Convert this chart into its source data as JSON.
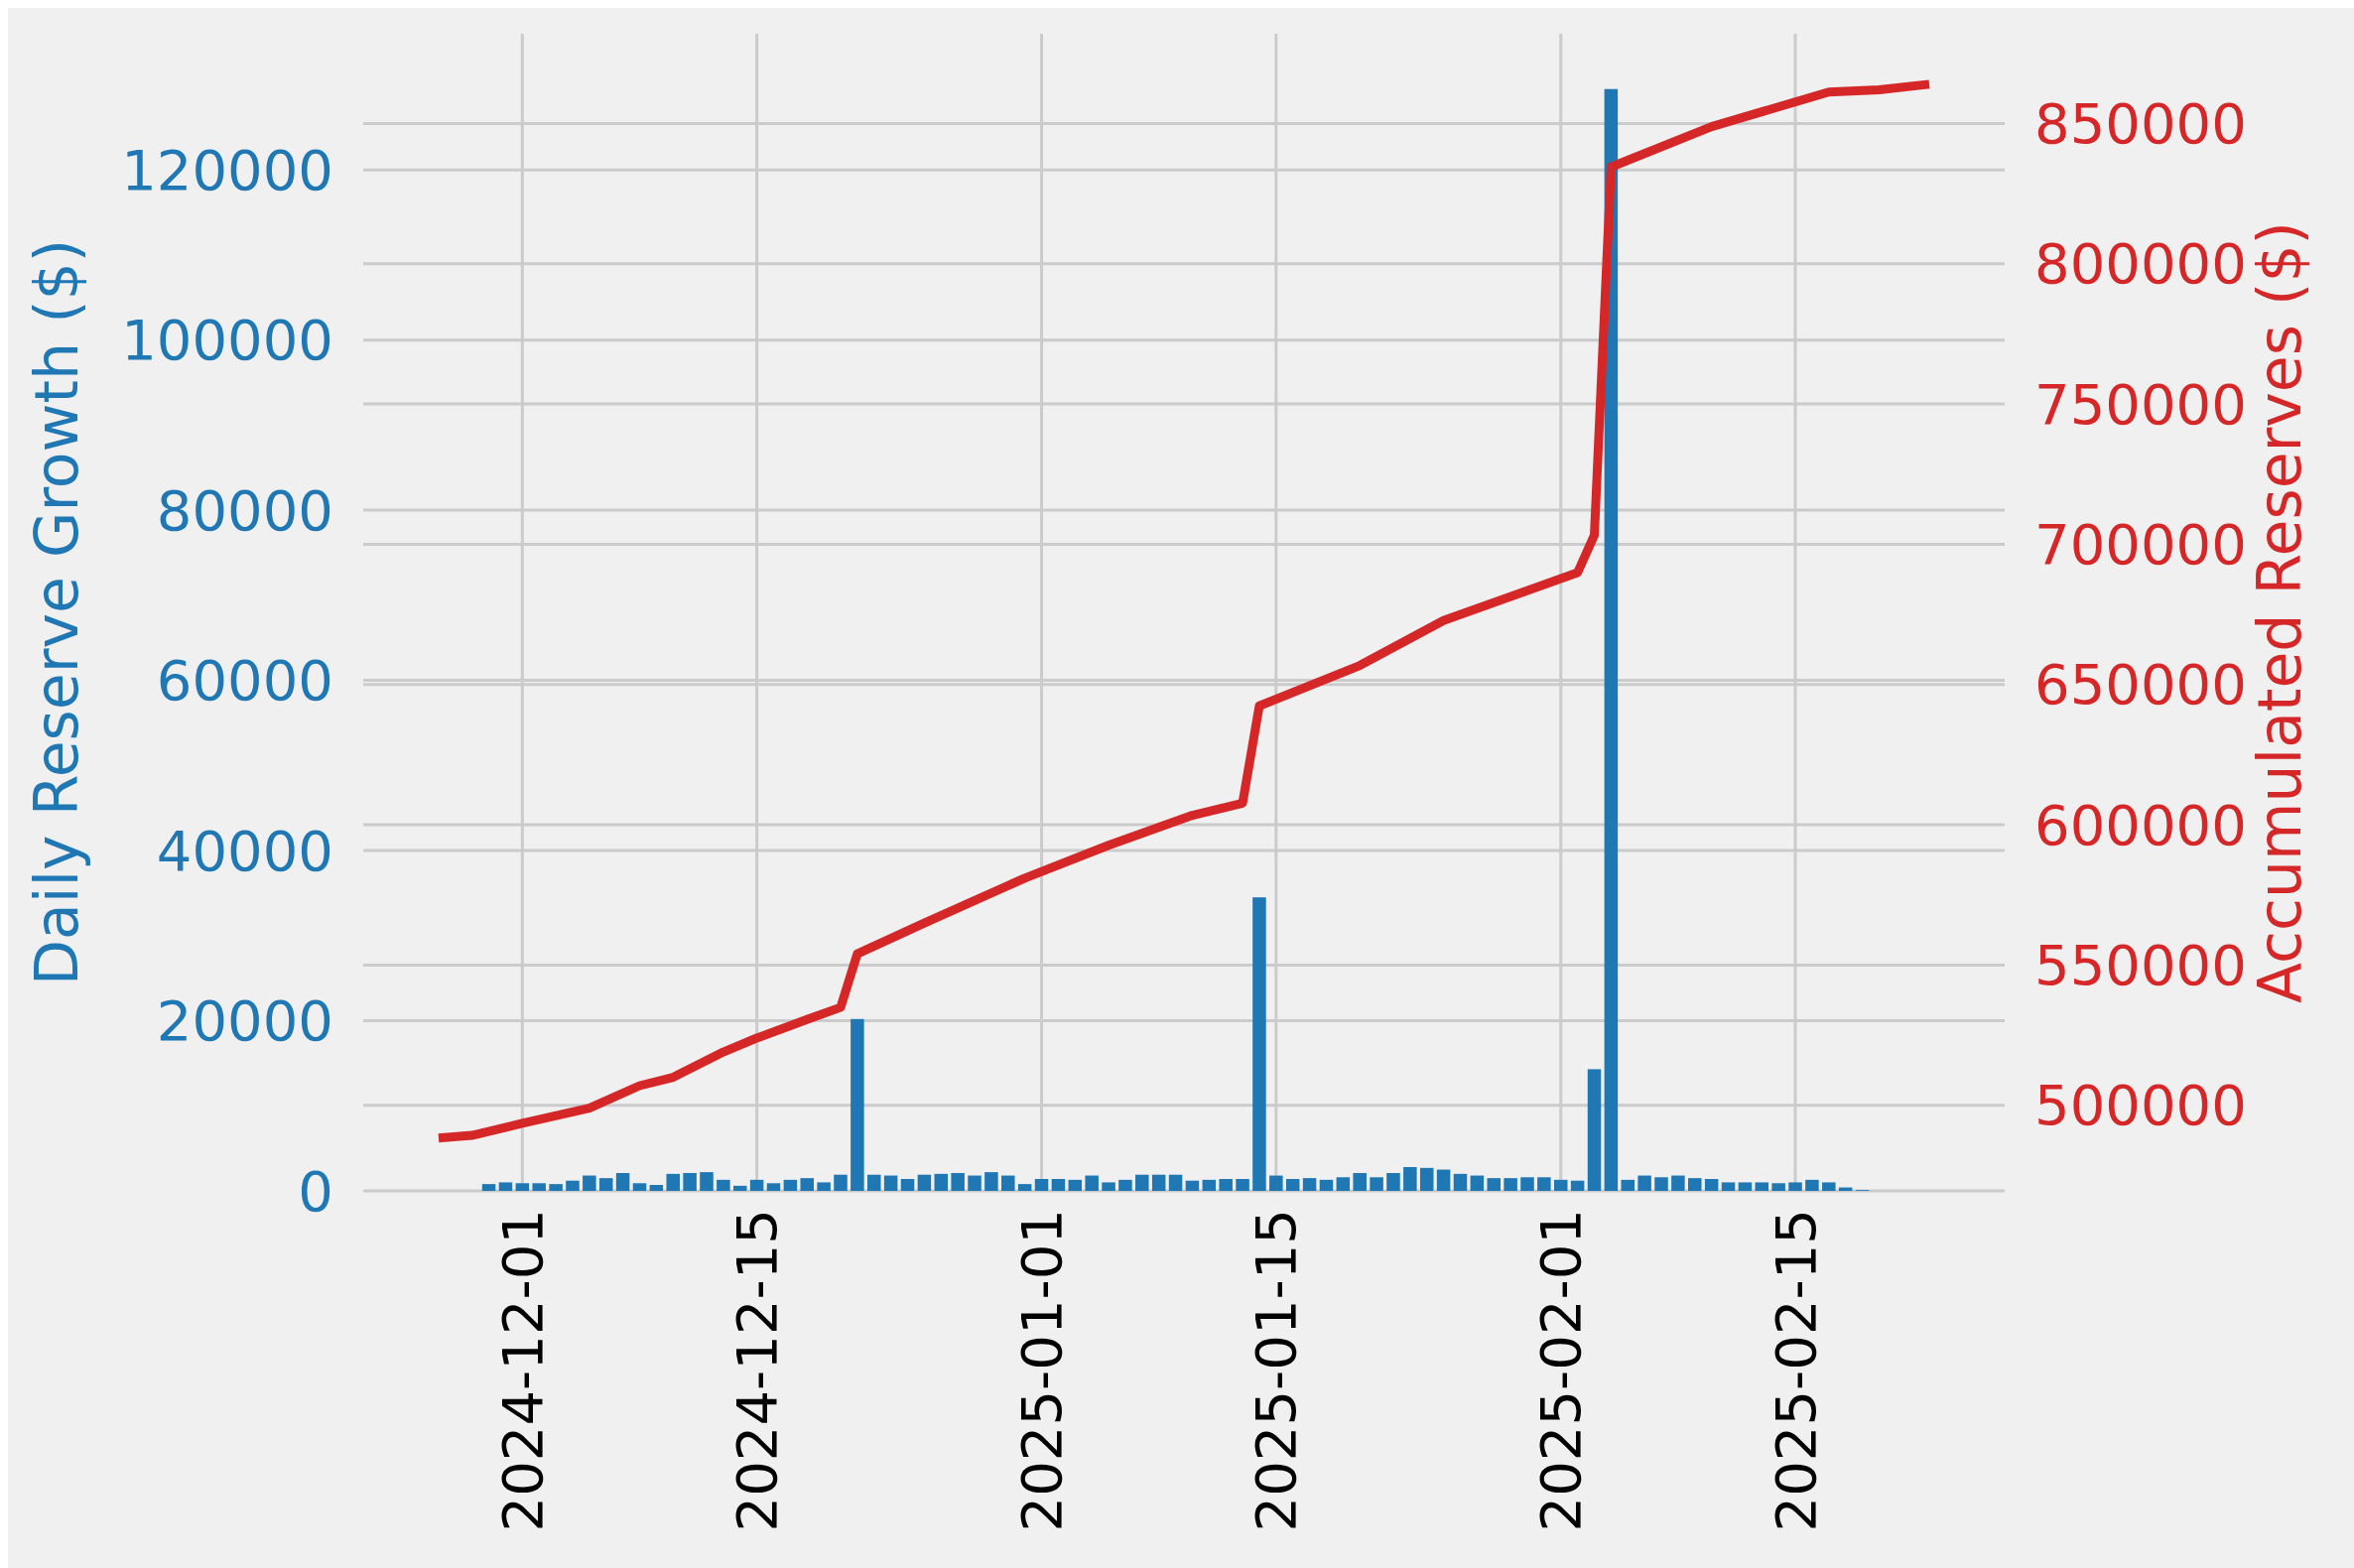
{
  "chart_data": {
    "type": "bar",
    "ylabel": "Daily Reserve Growth ($)",
    "y2label": "Accumulated Reserves ($)",
    "x": [
      "2024-11-29",
      "2024-11-30",
      "2024-12-01",
      "2024-12-02",
      "2024-12-03",
      "2024-12-04",
      "2024-12-05",
      "2024-12-06",
      "2024-12-07",
      "2024-12-08",
      "2024-12-09",
      "2024-12-10",
      "2024-12-11",
      "2024-12-12",
      "2024-12-13",
      "2024-12-14",
      "2024-12-15",
      "2024-12-16",
      "2024-12-17",
      "2024-12-18",
      "2024-12-19",
      "2024-12-20",
      "2024-12-21",
      "2024-12-22",
      "2024-12-23",
      "2024-12-24",
      "2024-12-25",
      "2024-12-26",
      "2024-12-27",
      "2024-12-28",
      "2024-12-29",
      "2024-12-30",
      "2024-12-31",
      "2025-01-01",
      "2025-01-02",
      "2025-01-03",
      "2025-01-04",
      "2025-01-05",
      "2025-01-06",
      "2025-01-07",
      "2025-01-08",
      "2025-01-09",
      "2025-01-10",
      "2025-01-11",
      "2025-01-12",
      "2025-01-13",
      "2025-01-14",
      "2025-01-15",
      "2025-01-16",
      "2025-01-17",
      "2025-01-18",
      "2025-01-19",
      "2025-01-20",
      "2025-01-21",
      "2025-01-22",
      "2025-01-23",
      "2025-01-24",
      "2025-01-25",
      "2025-01-26",
      "2025-01-27",
      "2025-01-28",
      "2025-01-29",
      "2025-01-30",
      "2025-01-31",
      "2025-02-01",
      "2025-02-02",
      "2025-02-03",
      "2025-02-04",
      "2025-02-05",
      "2025-02-06",
      "2025-02-07",
      "2025-02-08",
      "2025-02-09",
      "2025-02-10",
      "2025-02-11",
      "2025-02-12",
      "2025-02-13",
      "2025-02-14",
      "2025-02-15",
      "2025-02-16",
      "2025-02-17",
      "2025-02-18",
      "2025-02-19",
      "2025-02-20",
      "2025-02-21",
      "2025-02-22"
    ],
    "series": [
      {
        "color": "#1f77b4",
        "values": [
          800,
          1000,
          900,
          900,
          800,
          1200,
          1800,
          1500,
          2100,
          900,
          700,
          2000,
          2100,
          2200,
          1300,
          600,
          1300,
          900,
          1300,
          1500,
          1000,
          1900,
          20200,
          1900,
          1800,
          1400,
          1900,
          2000,
          2100,
          1800,
          2200,
          1800,
          800,
          1400,
          1400,
          1300,
          1800,
          1000,
          1300,
          1900,
          1900,
          1900,
          1200,
          1300,
          1400,
          1400,
          34500,
          1800,
          1400,
          1500,
          1300,
          1600,
          2100,
          1600,
          2100,
          2800,
          2700,
          2500,
          2000,
          1800,
          1500,
          1500,
          1600,
          1600,
          1300,
          1200,
          14300,
          129500,
          1300,
          1800,
          1600,
          1800,
          1500,
          1400,
          1000,
          1000,
          1000,
          900,
          1000,
          1300,
          1000,
          400,
          100,
          0,
          0,
          0
        ]
      },
      {
        "type": "line",
        "color": "#d62728",
        "axis": "y2",
        "x": [
          "2024-11-26",
          "2024-11-28",
          "2024-12-01",
          "2024-12-05",
          "2024-12-08",
          "2024-12-10",
          "2024-12-13",
          "2024-12-15",
          "2024-12-18",
          "2024-12-20",
          "2024-12-21",
          "2024-12-25",
          "2024-12-31",
          "2025-01-05",
          "2025-01-10",
          "2025-01-13",
          "2025-01-14",
          "2025-01-20",
          "2025-01-25",
          "2025-02-02",
          "2025-02-03",
          "2025-02-04",
          "2025-02-10",
          "2025-02-17",
          "2025-02-20",
          "2025-02-23"
        ],
        "values": [
          488300,
          489300,
          493600,
          499000,
          507000,
          510000,
          519000,
          524000,
          530600,
          534900,
          554000,
          565000,
          581000,
          592700,
          603400,
          607700,
          642400,
          656800,
          672800,
          689900,
          703200,
          834500,
          848900,
          861200,
          862000,
          864000
        ]
      }
    ],
    "xlim": [
      "2024-11-21T12:00",
      "2025-02-27T12:00"
    ],
    "xticks": [
      "2024-12-01",
      "2024-12-15",
      "2025-01-01",
      "2025-01-15",
      "2025-02-01",
      "2025-02-15"
    ],
    "ylim": [
      0,
      136000
    ],
    "yticks": [
      0,
      20000,
      40000,
      60000,
      80000,
      100000,
      120000
    ],
    "y2lim": [
      469500,
      882000
    ],
    "y2ticks": [
      500000,
      550000,
      600000,
      650000,
      700000,
      750000,
      800000,
      850000
    ],
    "grid": true
  }
}
